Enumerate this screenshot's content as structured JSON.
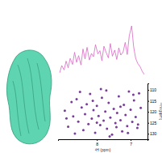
{
  "chart_data": [
    {
      "type": "line",
      "color": "#d866c4",
      "tick_labels": false,
      "xlim": [
        9.15,
        6.5
      ],
      "ylim": [
        0,
        10
      ],
      "x": [
        9.1,
        9.04,
        8.97,
        8.91,
        8.85,
        8.79,
        8.72,
        8.66,
        8.6,
        8.54,
        8.47,
        8.41,
        8.35,
        8.29,
        8.22,
        8.16,
        8.1,
        8.04,
        7.97,
        7.91,
        7.85,
        7.79,
        7.72,
        7.66,
        7.6,
        7.54,
        7.47,
        7.41,
        7.35,
        7.29,
        7.22,
        7.16,
        7.1,
        7.04,
        6.97,
        6.91,
        6.85,
        6.79,
        6.72,
        6.66,
        6.6
      ],
      "values": [
        1.5,
        2.8,
        2.0,
        3.6,
        2.4,
        4.1,
        3.0,
        5.2,
        3.4,
        4.6,
        2.9,
        5.8,
        4.0,
        6.1,
        3.8,
        5.0,
        4.4,
        6.6,
        4.9,
        5.5,
        3.7,
        6.3,
        5.1,
        4.2,
        6.8,
        4.5,
        5.6,
        3.9,
        6.0,
        4.7,
        5.3,
        7.0,
        4.8,
        8.2,
        10.0,
        6.2,
        4.1,
        3.2,
        2.6,
        1.8,
        1.2
      ]
    },
    {
      "type": "scatter",
      "color": "#7a3c9a",
      "marker": "circle",
      "x_label": "¹H (ppm)",
      "y_label": "¹⁵N (ppm)",
      "xlim": [
        9.15,
        6.5
      ],
      "xticks": [
        8,
        7
      ],
      "ylim": [
        107,
        132.5
      ],
      "yticks": [
        110,
        115,
        120,
        125,
        130
      ],
      "x": [
        8.95,
        8.85,
        8.7,
        8.6,
        8.55,
        8.45,
        8.4,
        8.35,
        8.3,
        8.25,
        8.2,
        8.15,
        8.1,
        8.05,
        8.0,
        7.95,
        7.9,
        7.85,
        7.8,
        7.75,
        7.7,
        7.65,
        7.6,
        7.55,
        7.5,
        7.45,
        7.4,
        7.35,
        7.3,
        7.25,
        7.2,
        7.15,
        7.1,
        7.05,
        7.0,
        6.95,
        6.9,
        6.85,
        6.8,
        6.75,
        6.7,
        8.75,
        8.65,
        8.5,
        8.0,
        7.88,
        7.62,
        7.3,
        6.92,
        6.78,
        8.9,
        8.12,
        7.72,
        7.42,
        7.08
      ],
      "values": [
        119.5,
        126.8,
        122.1,
        114.2,
        124.5,
        118.0,
        128.3,
        121.0,
        116.5,
        125.6,
        111.8,
        123.1,
        119.2,
        129.5,
        117.3,
        121.9,
        126.0,
        113.6,
        124.0,
        119.8,
        127.7,
        115.9,
        122.6,
        130.4,
        118.6,
        125.1,
        120.5,
        112.9,
        123.8,
        128.9,
        116.8,
        121.4,
        126.5,
        110.7,
        119.0,
        124.6,
        114.8,
        122.3,
        127.3,
        111.5,
        118.2,
        115.5,
        129.9,
        110.9,
        124.9,
        109.6,
        131.2,
        117.6,
        112.2,
        125.8,
        123.0,
        114.9,
        110.2,
        127.0,
        129.6
      ]
    }
  ]
}
